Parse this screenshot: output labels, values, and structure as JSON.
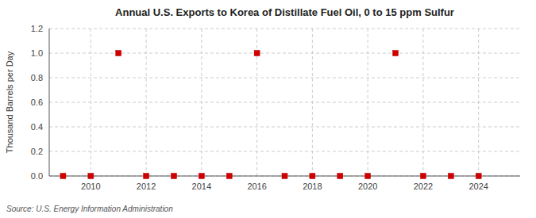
{
  "chart_data": {
    "type": "scatter",
    "title": "Annual U.S. Exports to Korea of Distillate Fuel Oil, 0 to 15 ppm Sulfur",
    "ylabel": "Thousand Barrels per Day",
    "source": "Source: U.S. Energy Information Administration",
    "x": [
      2009,
      2010,
      2011,
      2012,
      2013,
      2014,
      2015,
      2016,
      2017,
      2018,
      2019,
      2020,
      2021,
      2022,
      2023,
      2024
    ],
    "values": [
      0,
      0,
      1,
      0,
      0,
      0,
      0,
      1,
      0,
      0,
      0,
      0,
      1,
      0,
      0,
      0
    ],
    "color": "#cc0000",
    "marker": "square",
    "xlim": [
      2008.5,
      2025.5
    ],
    "ylim": [
      0.0,
      1.2
    ],
    "xticks": [
      2010,
      2012,
      2014,
      2016,
      2018,
      2020,
      2022,
      2024
    ],
    "yticks": [
      {
        "value": 0.0,
        "label": "0.0"
      },
      0.2,
      0.4,
      0.6,
      0.8,
      {
        "value": 1.0,
        "label": "1.0"
      },
      1.2
    ],
    "grid": true
  }
}
